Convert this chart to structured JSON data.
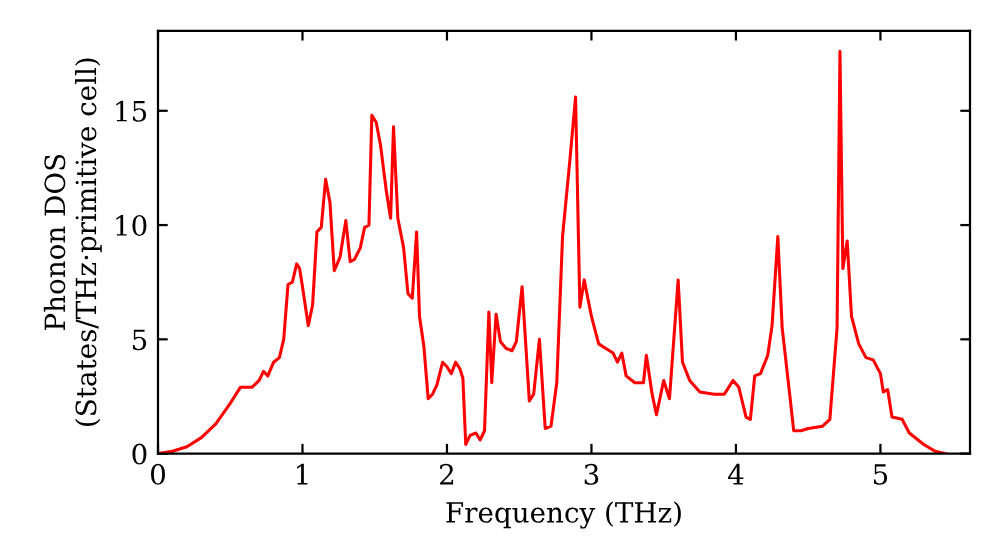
{
  "chart_data": {
    "type": "line",
    "xlabel": "Frequency (THz)",
    "ylabel": "Phonon DOS\n(States/THz·primitive cell)",
    "xlim": [
      0,
      5.62
    ],
    "ylim": [
      0,
      18.5
    ],
    "xticks": [
      0,
      1,
      2,
      3,
      4,
      5
    ],
    "yticks": [
      0,
      5,
      10,
      15
    ],
    "grid": false,
    "marker": "none",
    "line_style": "solid",
    "series": [
      {
        "color": "#ff0000",
        "x": [
          0,
          0.1,
          0.2,
          0.3,
          0.4,
          0.5,
          0.57,
          0.65,
          0.7,
          0.73,
          0.76,
          0.8,
          0.84,
          0.87,
          0.9,
          0.93,
          0.96,
          0.98,
          1.0,
          1.04,
          1.07,
          1.1,
          1.13,
          1.16,
          1.19,
          1.22,
          1.26,
          1.3,
          1.33,
          1.36,
          1.4,
          1.43,
          1.46,
          1.48,
          1.51,
          1.54,
          1.58,
          1.61,
          1.63,
          1.66,
          1.7,
          1.73,
          1.76,
          1.79,
          1.81,
          1.84,
          1.87,
          1.9,
          1.93,
          1.97,
          2.0,
          2.03,
          2.06,
          2.09,
          2.11,
          2.13,
          2.16,
          2.2,
          2.23,
          2.26,
          2.29,
          2.31,
          2.34,
          2.37,
          2.41,
          2.45,
          2.48,
          2.52,
          2.57,
          2.6,
          2.64,
          2.68,
          2.72,
          2.76,
          2.8,
          2.85,
          2.89,
          2.92,
          2.95,
          3.0,
          3.05,
          3.1,
          3.15,
          3.18,
          3.21,
          3.24,
          3.3,
          3.36,
          3.38,
          3.42,
          3.45,
          3.5,
          3.54,
          3.6,
          3.63,
          3.68,
          3.75,
          3.85,
          3.92,
          3.98,
          4.02,
          4.07,
          4.1,
          4.13,
          4.17,
          4.22,
          4.25,
          4.29,
          4.32,
          4.37,
          4.4,
          4.45,
          4.5,
          4.6,
          4.65,
          4.7,
          4.72,
          4.74,
          4.77,
          4.8,
          4.85,
          4.9,
          4.95,
          5.0,
          5.02,
          5.05,
          5.08,
          5.15,
          5.2,
          5.3,
          5.38,
          5.45
        ],
        "values": [
          0,
          0.1,
          0.3,
          0.7,
          1.3,
          2.2,
          2.9,
          2.9,
          3.2,
          3.6,
          3.4,
          4.0,
          4.2,
          5.0,
          7.4,
          7.5,
          8.3,
          8.1,
          7.3,
          5.6,
          6.5,
          9.7,
          9.9,
          12.0,
          11.0,
          8.0,
          8.6,
          10.2,
          8.4,
          8.5,
          9.0,
          9.9,
          10.0,
          14.8,
          14.5,
          13.5,
          11.5,
          10.3,
          14.3,
          10.3,
          9.0,
          7.0,
          6.8,
          9.7,
          6.0,
          4.7,
          2.4,
          2.6,
          3.0,
          4.0,
          3.8,
          3.5,
          4.0,
          3.7,
          3.3,
          0.4,
          0.8,
          0.9,
          0.6,
          1.0,
          6.2,
          3.1,
          6.1,
          4.9,
          4.6,
          4.5,
          4.9,
          7.3,
          2.3,
          2.6,
          5.0,
          1.1,
          1.2,
          3.1,
          9.5,
          12.8,
          15.6,
          6.4,
          7.6,
          6.0,
          4.8,
          4.6,
          4.4,
          4.0,
          4.4,
          3.4,
          3.1,
          3.1,
          4.3,
          2.6,
          1.7,
          3.2,
          2.4,
          7.6,
          4.0,
          3.2,
          2.7,
          2.6,
          2.6,
          3.2,
          2.9,
          1.6,
          1.5,
          3.4,
          3.5,
          4.3,
          5.6,
          9.5,
          5.5,
          2.7,
          1.0,
          1.0,
          1.1,
          1.2,
          1.5,
          5.5,
          17.6,
          8.1,
          9.3,
          6.0,
          4.8,
          4.2,
          4.1,
          3.5,
          2.7,
          2.8,
          1.6,
          1.5,
          0.9,
          0.4,
          0.1,
          0.0
        ]
      }
    ]
  }
}
